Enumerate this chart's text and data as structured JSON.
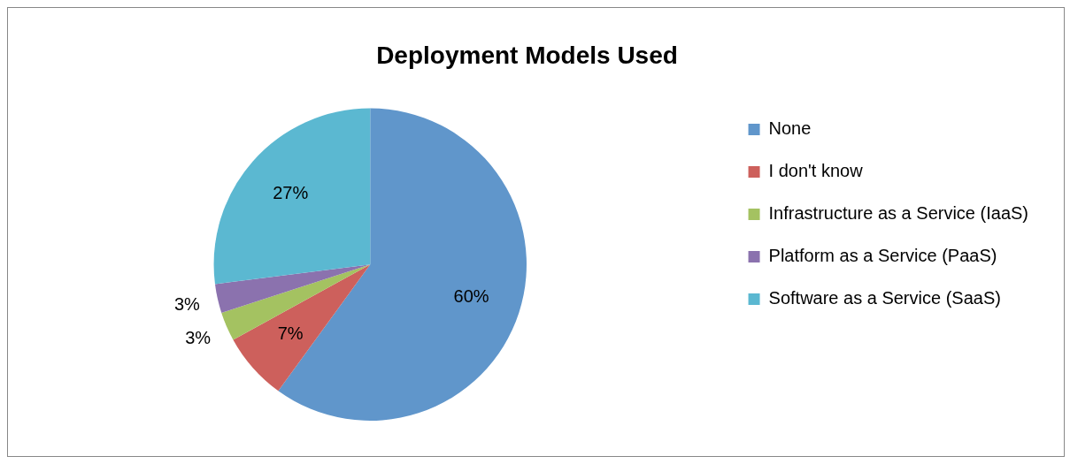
{
  "chart_data": {
    "type": "pie",
    "title": "Deployment Models Used",
    "categories": [
      "None",
      "I don't know",
      "Infrastructure as a Service (IaaS)",
      "Platform as a Service (PaaS)",
      "Software as a Service (SaaS)"
    ],
    "values": [
      60,
      7,
      3,
      3,
      27
    ],
    "colors": [
      "#6096cb",
      "#cd605c",
      "#a4c261",
      "#8b72ae",
      "#5bb8d1"
    ],
    "value_labels": [
      "60%",
      "7%",
      "3%",
      "3%",
      "27%"
    ],
    "legend": "right"
  }
}
